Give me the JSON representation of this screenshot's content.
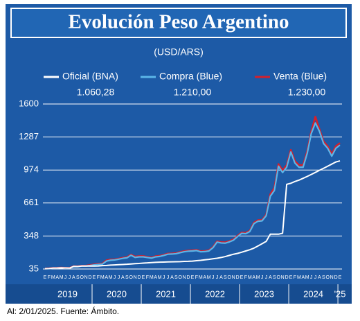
{
  "chart_data": {
    "type": "line",
    "title": "Evolución Peso Argentino",
    "subtitle": "(USD/ARS)",
    "footnote": "Al: 2/01/2025. Fuente: Ámbito.",
    "categories": [
      "E",
      "F",
      "M",
      "A",
      "M",
      "J",
      "J",
      "A",
      "S",
      "O",
      "N",
      "D",
      "E",
      "F",
      "M",
      "A",
      "M",
      "J",
      "J",
      "A",
      "S",
      "O",
      "N",
      "D",
      "E",
      "F",
      "M",
      "A",
      "M",
      "J",
      "J",
      "A",
      "S",
      "O",
      "N",
      "D",
      "E",
      "F",
      "M",
      "A",
      "M",
      "J",
      "J",
      "A",
      "S",
      "O",
      "N",
      "D",
      "E",
      "F",
      "M",
      "A",
      "M",
      "J",
      "J",
      "A",
      "S",
      "O",
      "N",
      "D",
      "E",
      "F",
      "M",
      "A",
      "M",
      "J",
      "J",
      "A",
      "S",
      "O",
      "N",
      "D",
      "E"
    ],
    "years": [
      "2019",
      "2020",
      "2021",
      "2022",
      "2023",
      "2024",
      "'25"
    ],
    "ylim": [
      35,
      1600
    ],
    "yticks": [
      35,
      348,
      661,
      974,
      1287,
      1600
    ],
    "grid": true,
    "series": [
      {
        "name": "Oficial (BNA)",
        "color": "#ffffff",
        "values": [
          38,
          39,
          43,
          44,
          46,
          45,
          43,
          60,
          59,
          63,
          63,
          63,
          63,
          64,
          67,
          69,
          72,
          74,
          76,
          78,
          80,
          83,
          86,
          88,
          91,
          93,
          96,
          98,
          100,
          101,
          102,
          103,
          104,
          105,
          107,
          108,
          110,
          114,
          117,
          122,
          126,
          132,
          137,
          144,
          153,
          164,
          175,
          183,
          194,
          206,
          218,
          233,
          254,
          275,
          297,
          365,
          365,
          365,
          374,
          838,
          848,
          865,
          878,
          895,
          913,
          932,
          951,
          971,
          990,
          1010,
          1030,
          1050,
          1060.28
        ],
        "value_labels": [
          null,
          null,
          null,
          null,
          null,
          null,
          null,
          null,
          null,
          null,
          null,
          null,
          null,
          null,
          null,
          null,
          null,
          null,
          null,
          null,
          null,
          null,
          null,
          null,
          null,
          null,
          null,
          null,
          null,
          null,
          null,
          null,
          null,
          null,
          null,
          null,
          null,
          null,
          null,
          null,
          null,
          null,
          null,
          null,
          null,
          null,
          null,
          null,
          null,
          null,
          null,
          null,
          null,
          null,
          null,
          null,
          null,
          null,
          null,
          null,
          null,
          null,
          null,
          null,
          null,
          null,
          null,
          null,
          null,
          null,
          null,
          null,
          "1.060,28"
        ]
      },
      {
        "name": "Compra (Blue)",
        "color": "#5cb6e8",
        "values": [
          37,
          39,
          43,
          44,
          46,
          43,
          43,
          58,
          57,
          63,
          63,
          68,
          74,
          78,
          81,
          110,
          118,
          121,
          128,
          136,
          141,
          165,
          145,
          150,
          150,
          144,
          138,
          150,
          154,
          164,
          175,
          177,
          180,
          190,
          199,
          204,
          206,
          210,
          198,
          200,
          206,
          236,
          290,
          282,
          280,
          292,
          308,
          342,
          373,
          370,
          390,
          465,
          488,
          492,
          540,
          725,
          780,
          1010,
          950,
          1000,
          1145,
          1040,
          1000,
          1000,
          1130,
          1320,
          1420,
          1340,
          1225,
          1180,
          1105,
          1180,
          1210
        ],
        "value_labels": [
          null,
          null,
          null,
          null,
          null,
          null,
          null,
          null,
          null,
          null,
          null,
          null,
          null,
          null,
          null,
          null,
          null,
          null,
          null,
          null,
          null,
          null,
          null,
          null,
          null,
          null,
          null,
          null,
          null,
          null,
          null,
          null,
          null,
          null,
          null,
          null,
          null,
          null,
          null,
          null,
          null,
          null,
          null,
          null,
          null,
          null,
          null,
          null,
          null,
          null,
          null,
          null,
          null,
          null,
          null,
          null,
          null,
          null,
          null,
          null,
          null,
          null,
          null,
          null,
          null,
          null,
          null,
          null,
          null,
          null,
          null,
          null,
          "1.210,00"
        ]
      },
      {
        "name": "Venta (Blue)",
        "color": "#d4202c",
        "values": [
          39,
          41,
          45,
          46,
          48,
          45,
          45,
          61,
          60,
          66,
          66,
          72,
          79,
          83,
          86,
          117,
          125,
          126,
          133,
          142,
          147,
          172,
          152,
          157,
          157,
          150,
          144,
          156,
          160,
          170,
          181,
          183,
          186,
          196,
          205,
          210,
          212,
          216,
          204,
          206,
          212,
          244,
          298,
          290,
          288,
          300,
          316,
          350,
          381,
          378,
          398,
          475,
          498,
          500,
          550,
          745,
          805,
          1030,
          970,
          1020,
          1165,
          1060,
          1020,
          1020,
          1150,
          1340,
          1480,
          1360,
          1245,
          1200,
          1125,
          1200,
          1230
        ],
        "value_labels": [
          null,
          null,
          null,
          null,
          null,
          null,
          null,
          null,
          null,
          null,
          null,
          null,
          null,
          null,
          null,
          null,
          null,
          null,
          null,
          null,
          null,
          null,
          null,
          null,
          null,
          null,
          null,
          null,
          null,
          null,
          null,
          null,
          null,
          null,
          null,
          null,
          null,
          null,
          null,
          null,
          null,
          null,
          null,
          null,
          null,
          null,
          null,
          null,
          null,
          null,
          null,
          null,
          null,
          null,
          null,
          null,
          null,
          null,
          null,
          null,
          null,
          null,
          null,
          null,
          null,
          null,
          null,
          null,
          null,
          null,
          null,
          null,
          "1.230,00"
        ]
      }
    ]
  }
}
